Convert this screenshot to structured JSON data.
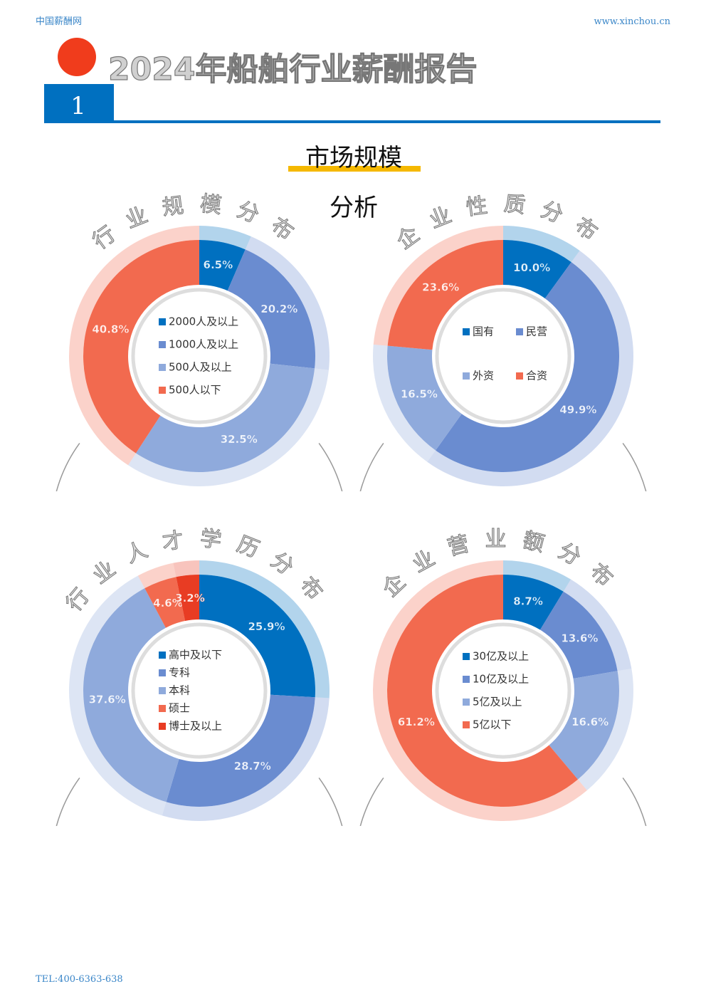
{
  "header": {
    "site_name": "中国薪酬网",
    "site_url": "www.xinchou.cn"
  },
  "report_title": "2024年船舶行业薪酬报告",
  "section_number": "1",
  "section_title": {
    "line1": "市场规模",
    "line2": "分析"
  },
  "footer": "TEL:400-6363-638",
  "chart_data": [
    {
      "type": "donut",
      "title": "行业规模分布",
      "categories": [
        "2000人及以上",
        "1000人及以上",
        "500人及以上",
        "500人以下"
      ],
      "values": [
        6.5,
        20.2,
        32.5,
        40.8
      ],
      "value_labels": [
        "6.5%",
        "20.2%",
        "32.5%",
        "40.8%"
      ],
      "colors": [
        "#0070c0",
        "#6a8cd0",
        "#8faadc",
        "#f26a4f"
      ],
      "legend_columns": 1
    },
    {
      "type": "donut",
      "title": "企业性质分布",
      "categories": [
        "国有",
        "民营",
        "外资",
        "合资"
      ],
      "values": [
        10.0,
        49.9,
        16.5,
        23.6
      ],
      "value_labels": [
        "10.0%",
        "49.9%",
        "16.5%",
        "23.6%"
      ],
      "colors": [
        "#0070c0",
        "#6a8cd0",
        "#8faadc",
        "#f26a4f"
      ],
      "legend_columns": 2
    },
    {
      "type": "donut",
      "title": "行业人才学历分布",
      "categories": [
        "高中及以下",
        "专科",
        "本科",
        "硕士",
        "博士及以上"
      ],
      "values": [
        25.9,
        28.7,
        37.6,
        4.6,
        3.2
      ],
      "value_labels": [
        "25.9%",
        "28.7%",
        "37.6%",
        "4.6%",
        "3.2%"
      ],
      "colors": [
        "#0070c0",
        "#6a8cd0",
        "#8faadc",
        "#f26a4f",
        "#e83c23"
      ],
      "legend_columns": 1
    },
    {
      "type": "donut",
      "title": "企业营业额分布",
      "categories": [
        "30亿及以上",
        "10亿及以上",
        "5亿及以上",
        "5亿以下"
      ],
      "values": [
        8.7,
        13.6,
        16.6,
        61.2
      ],
      "value_labels": [
        "8.7%",
        "13.6%",
        "16.6%",
        "61.2%"
      ],
      "colors": [
        "#0070c0",
        "#6a8cd0",
        "#8faadc",
        "#f26a4f"
      ],
      "legend_columns": 1
    }
  ]
}
